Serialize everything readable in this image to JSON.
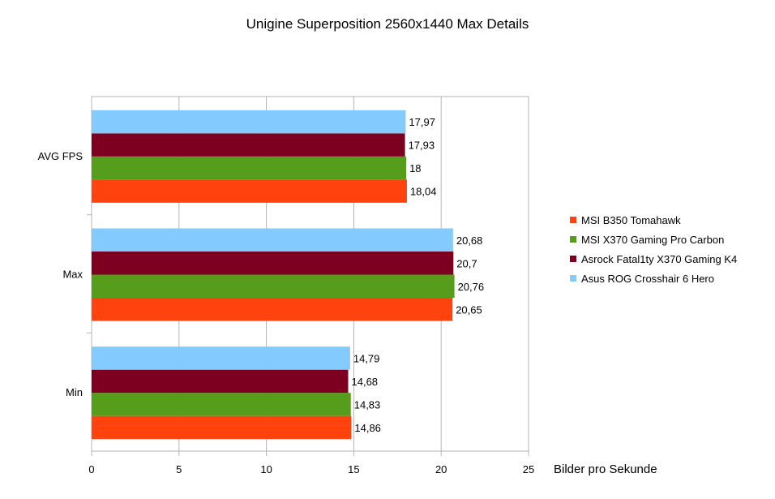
{
  "chart_data": {
    "type": "bar",
    "orientation": "horizontal",
    "title": "Unigine Superposition 2560x1440 Max Details",
    "xlabel": "Bilder pro Sekunde",
    "ylabel": "",
    "xlim": [
      0,
      25
    ],
    "xticks": [
      "0",
      "5",
      "10",
      "15",
      "20",
      "25"
    ],
    "grid": true,
    "legend_position": "right",
    "categories": [
      "AVG FPS",
      "Max",
      "Min"
    ],
    "series": [
      {
        "name": "MSI B350 Tomahawk",
        "color": "#ff420e",
        "values": [
          18.04,
          20.65,
          14.86
        ],
        "labels": [
          "18,04",
          "20,65",
          "14,86"
        ]
      },
      {
        "name": "MSI X370 Gaming Pro Carbon",
        "color": "#579d1c",
        "values": [
          18,
          20.76,
          14.83
        ],
        "labels": [
          "18",
          "20,76",
          "14,83"
        ]
      },
      {
        "name": "Asrock Fatal1ty X370 Gaming K4",
        "color": "#7e0021",
        "values": [
          17.93,
          20.7,
          14.68
        ],
        "labels": [
          "17,93",
          "20,7",
          "14,68"
        ]
      },
      {
        "name": "Asus ROG Crosshair 6 Hero",
        "color": "#83caff",
        "values": [
          17.97,
          20.68,
          14.79
        ],
        "labels": [
          "17,97",
          "20,68",
          "14,79"
        ]
      }
    ]
  }
}
